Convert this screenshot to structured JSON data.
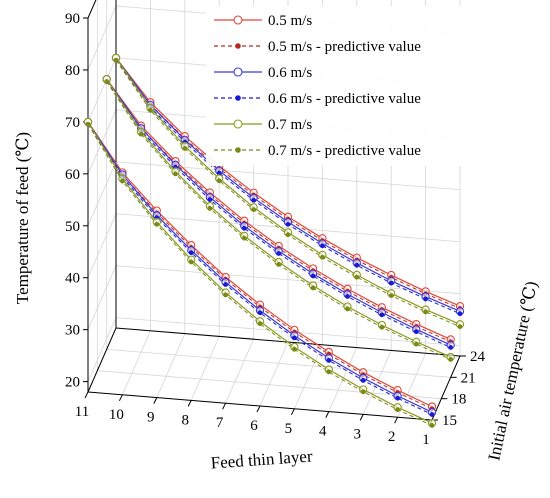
{
  "chart_data": {
    "type": "line",
    "title": "",
    "zlabel": "Temperature of feed (℃)",
    "xlabel": "Feed thin layer",
    "ylabel": "Initial air temperature (℃)",
    "x_ticks": [
      "11",
      "10",
      "9",
      "8",
      "7",
      "6",
      "5",
      "4",
      "3",
      "2",
      "1"
    ],
    "y_ticks": [
      "15",
      "18",
      "21",
      "24"
    ],
    "z_ticks": [
      "20",
      "30",
      "40",
      "50",
      "60",
      "70",
      "80",
      "90"
    ],
    "zlim": [
      18,
      90
    ],
    "x": [
      11,
      10,
      9,
      8,
      7,
      6,
      5,
      4,
      3,
      2,
      1
    ],
    "depth_values": [
      15,
      21,
      24
    ],
    "grid": true,
    "legend_position": "top-right",
    "legend": [
      "0.5 m/s",
      "0.5 m/s - predictive value",
      "0.6 m/s",
      "0.6 m/s - predictive value",
      "0.7 m/s",
      "0.7 m/s - predictive value"
    ],
    "colors": {
      "v05": "#e0473a",
      "v05_pred": "#b52a1e",
      "v06": "#3a3ad8",
      "v06_pred": "#1a1ad0",
      "v07": "#8c9a1e",
      "v07_pred": "#7a8a18"
    },
    "series": [
      {
        "speed": "0.5",
        "depth": 15,
        "values": [
          70.0,
          60.8,
          54.0,
          47.9,
          42.3,
          37.5,
          33.2,
          29.5,
          26.1,
          23.2,
          20.6
        ]
      },
      {
        "speed": "0.6",
        "depth": 15,
        "values": [
          70.0,
          60.4,
          53.1,
          46.9,
          41.3,
          36.4,
          32.1,
          28.3,
          25.0,
          22.1,
          19.5
        ]
      },
      {
        "speed": "0.7",
        "depth": 15,
        "values": [
          70.0,
          59.6,
          51.8,
          45.1,
          39.3,
          34.3,
          29.9,
          26.1,
          22.8,
          19.9,
          17.4
        ]
      },
      {
        "speed": "0.5",
        "depth": 21,
        "values": [
          70.0,
          61.6,
          55.3,
          49.8,
          44.9,
          40.6,
          36.8,
          33.4,
          30.4,
          27.7,
          25.3
        ]
      },
      {
        "speed": "0.6",
        "depth": 21,
        "values": [
          70.0,
          61.1,
          54.6,
          48.9,
          43.9,
          39.6,
          35.8,
          32.4,
          29.4,
          26.7,
          24.2
        ]
      },
      {
        "speed": "0.7",
        "depth": 21,
        "values": [
          70.0,
          60.4,
          53.3,
          47.2,
          42.0,
          37.5,
          33.5,
          30.0,
          27.0,
          24.3,
          21.9
        ]
      },
      {
        "speed": "0.5",
        "depth": 24,
        "values": [
          70.0,
          62.0,
          56.0,
          50.8,
          46.2,
          42.1,
          38.5,
          35.3,
          32.5,
          29.9,
          27.6
        ]
      },
      {
        "speed": "0.6",
        "depth": 24,
        "values": [
          70.0,
          61.5,
          55.3,
          49.9,
          45.2,
          41.1,
          37.5,
          34.3,
          31.4,
          28.9,
          26.6
        ]
      },
      {
        "speed": "0.7",
        "depth": 24,
        "values": [
          70.0,
          60.9,
          54.1,
          48.4,
          43.4,
          39.1,
          35.3,
          32.0,
          29.0,
          26.4,
          24.1
        ]
      }
    ]
  }
}
